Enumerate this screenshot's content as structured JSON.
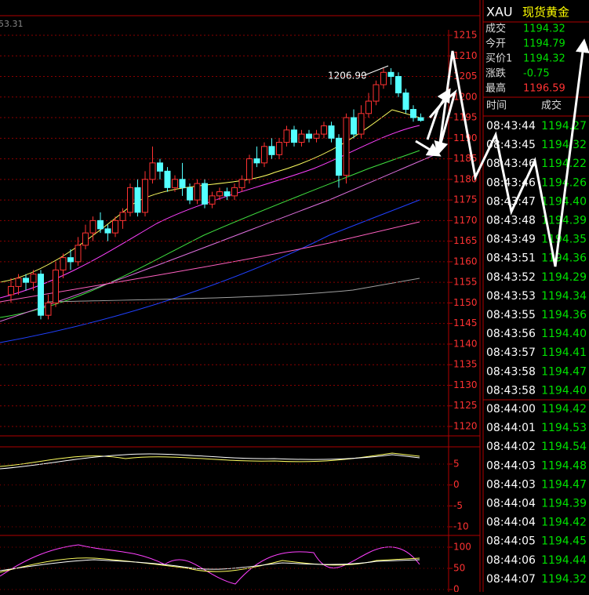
{
  "header": {
    "symbol": "XAU",
    "name": "现货黄金"
  },
  "top_label": "53.31",
  "quote": [
    {
      "label": "成交",
      "value": "1194.32",
      "color": "#00e000"
    },
    {
      "label": "今开",
      "value": "1194.79",
      "color": "#00e000"
    },
    {
      "label": "买价1",
      "value": "1194.32",
      "color": "#00e000"
    },
    {
      "label": "涨跌",
      "value": "-0.75",
      "color": "#00e000"
    },
    {
      "label": "最高",
      "value": "1196.59",
      "color": "#ff3232"
    }
  ],
  "trades_header": [
    "时间",
    "成交"
  ],
  "trades_color": "#00e000",
  "trades": [
    [
      "08:43:44",
      "1194.27"
    ],
    [
      "08:43:45",
      "1194.32"
    ],
    [
      "08:43:46",
      "1194.22"
    ],
    [
      "08:43:46",
      "1194.26"
    ],
    [
      "08:43:47",
      "1194.40"
    ],
    [
      "08:43:48",
      "1194.39"
    ],
    [
      "08:43:49",
      "1194.35"
    ],
    [
      "08:43:51",
      "1194.36"
    ],
    [
      "08:43:52",
      "1194.29"
    ],
    [
      "08:43:53",
      "1194.34"
    ],
    [
      "08:43:55",
      "1194.36"
    ],
    [
      "08:43:56",
      "1194.40"
    ],
    [
      "08:43:57",
      "1194.41"
    ],
    [
      "08:43:58",
      "1194.47"
    ],
    [
      "08:43:58",
      "1194.40"
    ],
    [
      "08:44:00",
      "1194.42"
    ],
    [
      "08:44:01",
      "1194.53"
    ],
    [
      "08:44:02",
      "1194.54"
    ],
    [
      "08:44:03",
      "1194.48"
    ],
    [
      "08:44:03",
      "1194.47"
    ],
    [
      "08:44:04",
      "1194.39"
    ],
    [
      "08:44:04",
      "1194.42"
    ],
    [
      "08:44:05",
      "1194.45"
    ],
    [
      "08:44:06",
      "1194.44"
    ],
    [
      "08:44:07",
      "1194.32"
    ]
  ],
  "kline": {
    "ylim": [
      1120,
      1215
    ],
    "yticks": [
      1215,
      1210,
      1205,
      1200,
      1195,
      1190,
      1185,
      1180,
      1175,
      1170,
      1165,
      1160,
      1155,
      1150,
      1145,
      1140,
      1135,
      1130,
      1125,
      1120
    ],
    "high_label": "1206.90",
    "up_color": "#ff3232",
    "down_color": "#54ffff",
    "candles": [
      [
        1152,
        1156,
        1150,
        1154
      ],
      [
        1154,
        1157,
        1152,
        1156
      ],
      [
        1156,
        1157,
        1153,
        1155
      ],
      [
        1155,
        1158,
        1153,
        1157
      ],
      [
        1157,
        1158,
        1146,
        1147
      ],
      [
        1147,
        1152,
        1146,
        1150
      ],
      [
        1150,
        1160,
        1149,
        1158
      ],
      [
        1158,
        1162,
        1156,
        1161
      ],
      [
        1161,
        1163,
        1158,
        1160
      ],
      [
        1160,
        1166,
        1159,
        1164
      ],
      [
        1164,
        1169,
        1163,
        1167
      ],
      [
        1167,
        1171,
        1165,
        1170
      ],
      [
        1170,
        1172,
        1167,
        1168
      ],
      [
        1168,
        1169,
        1165,
        1167
      ],
      [
        1167,
        1171,
        1166,
        1170
      ],
      [
        1170,
        1173,
        1168,
        1172
      ],
      [
        1172,
        1179,
        1171,
        1178
      ],
      [
        1178,
        1180,
        1171,
        1172
      ],
      [
        1172,
        1182,
        1171,
        1180
      ],
      [
        1180,
        1188,
        1179,
        1184
      ],
      [
        1184,
        1185,
        1180,
        1182
      ],
      [
        1182,
        1183,
        1177,
        1178
      ],
      [
        1178,
        1181,
        1177,
        1180
      ],
      [
        1180,
        1184,
        1176,
        1178
      ],
      [
        1178,
        1179,
        1174,
        1175
      ],
      [
        1175,
        1180,
        1174,
        1179
      ],
      [
        1179,
        1180,
        1173,
        1174
      ],
      [
        1174,
        1177,
        1173,
        1176
      ],
      [
        1176,
        1178,
        1175,
        1177
      ],
      [
        1177,
        1178,
        1175,
        1176
      ],
      [
        1176,
        1179,
        1175,
        1178
      ],
      [
        1178,
        1181,
        1177,
        1180
      ],
      [
        1180,
        1186,
        1179,
        1185
      ],
      [
        1185,
        1188,
        1183,
        1184
      ],
      [
        1184,
        1189,
        1183,
        1188
      ],
      [
        1188,
        1190,
        1185,
        1186
      ],
      [
        1186,
        1190,
        1185,
        1189
      ],
      [
        1189,
        1193,
        1188,
        1192
      ],
      [
        1192,
        1193,
        1188,
        1189
      ],
      [
        1189,
        1192,
        1188,
        1191
      ],
      [
        1191,
        1192,
        1189,
        1190
      ],
      [
        1190,
        1192,
        1189,
        1191
      ],
      [
        1191,
        1194,
        1190,
        1193
      ],
      [
        1193,
        1194,
        1189,
        1190
      ],
      [
        1190,
        1191,
        1178,
        1181
      ],
      [
        1181,
        1196,
        1179,
        1195
      ],
      [
        1195,
        1197,
        1190,
        1191
      ],
      [
        1191,
        1198,
        1190,
        1196
      ],
      [
        1196,
        1201,
        1195,
        1199
      ],
      [
        1199,
        1204,
        1198,
        1203
      ],
      [
        1203,
        1207,
        1202,
        1206
      ],
      [
        1206,
        1207,
        1203,
        1205
      ],
      [
        1205,
        1206,
        1200,
        1201
      ],
      [
        1201,
        1202,
        1196,
        1197
      ],
      [
        1197,
        1198,
        1194,
        1195
      ],
      [
        1195,
        1196,
        1194,
        1194.32
      ]
    ]
  },
  "macd": {
    "ylim": [
      -10,
      5
    ],
    "yticks": [
      5,
      0,
      -5,
      -10
    ]
  },
  "kdj": {
    "ylim": [
      0,
      100
    ],
    "yticks": [
      100,
      50,
      0
    ]
  }
}
